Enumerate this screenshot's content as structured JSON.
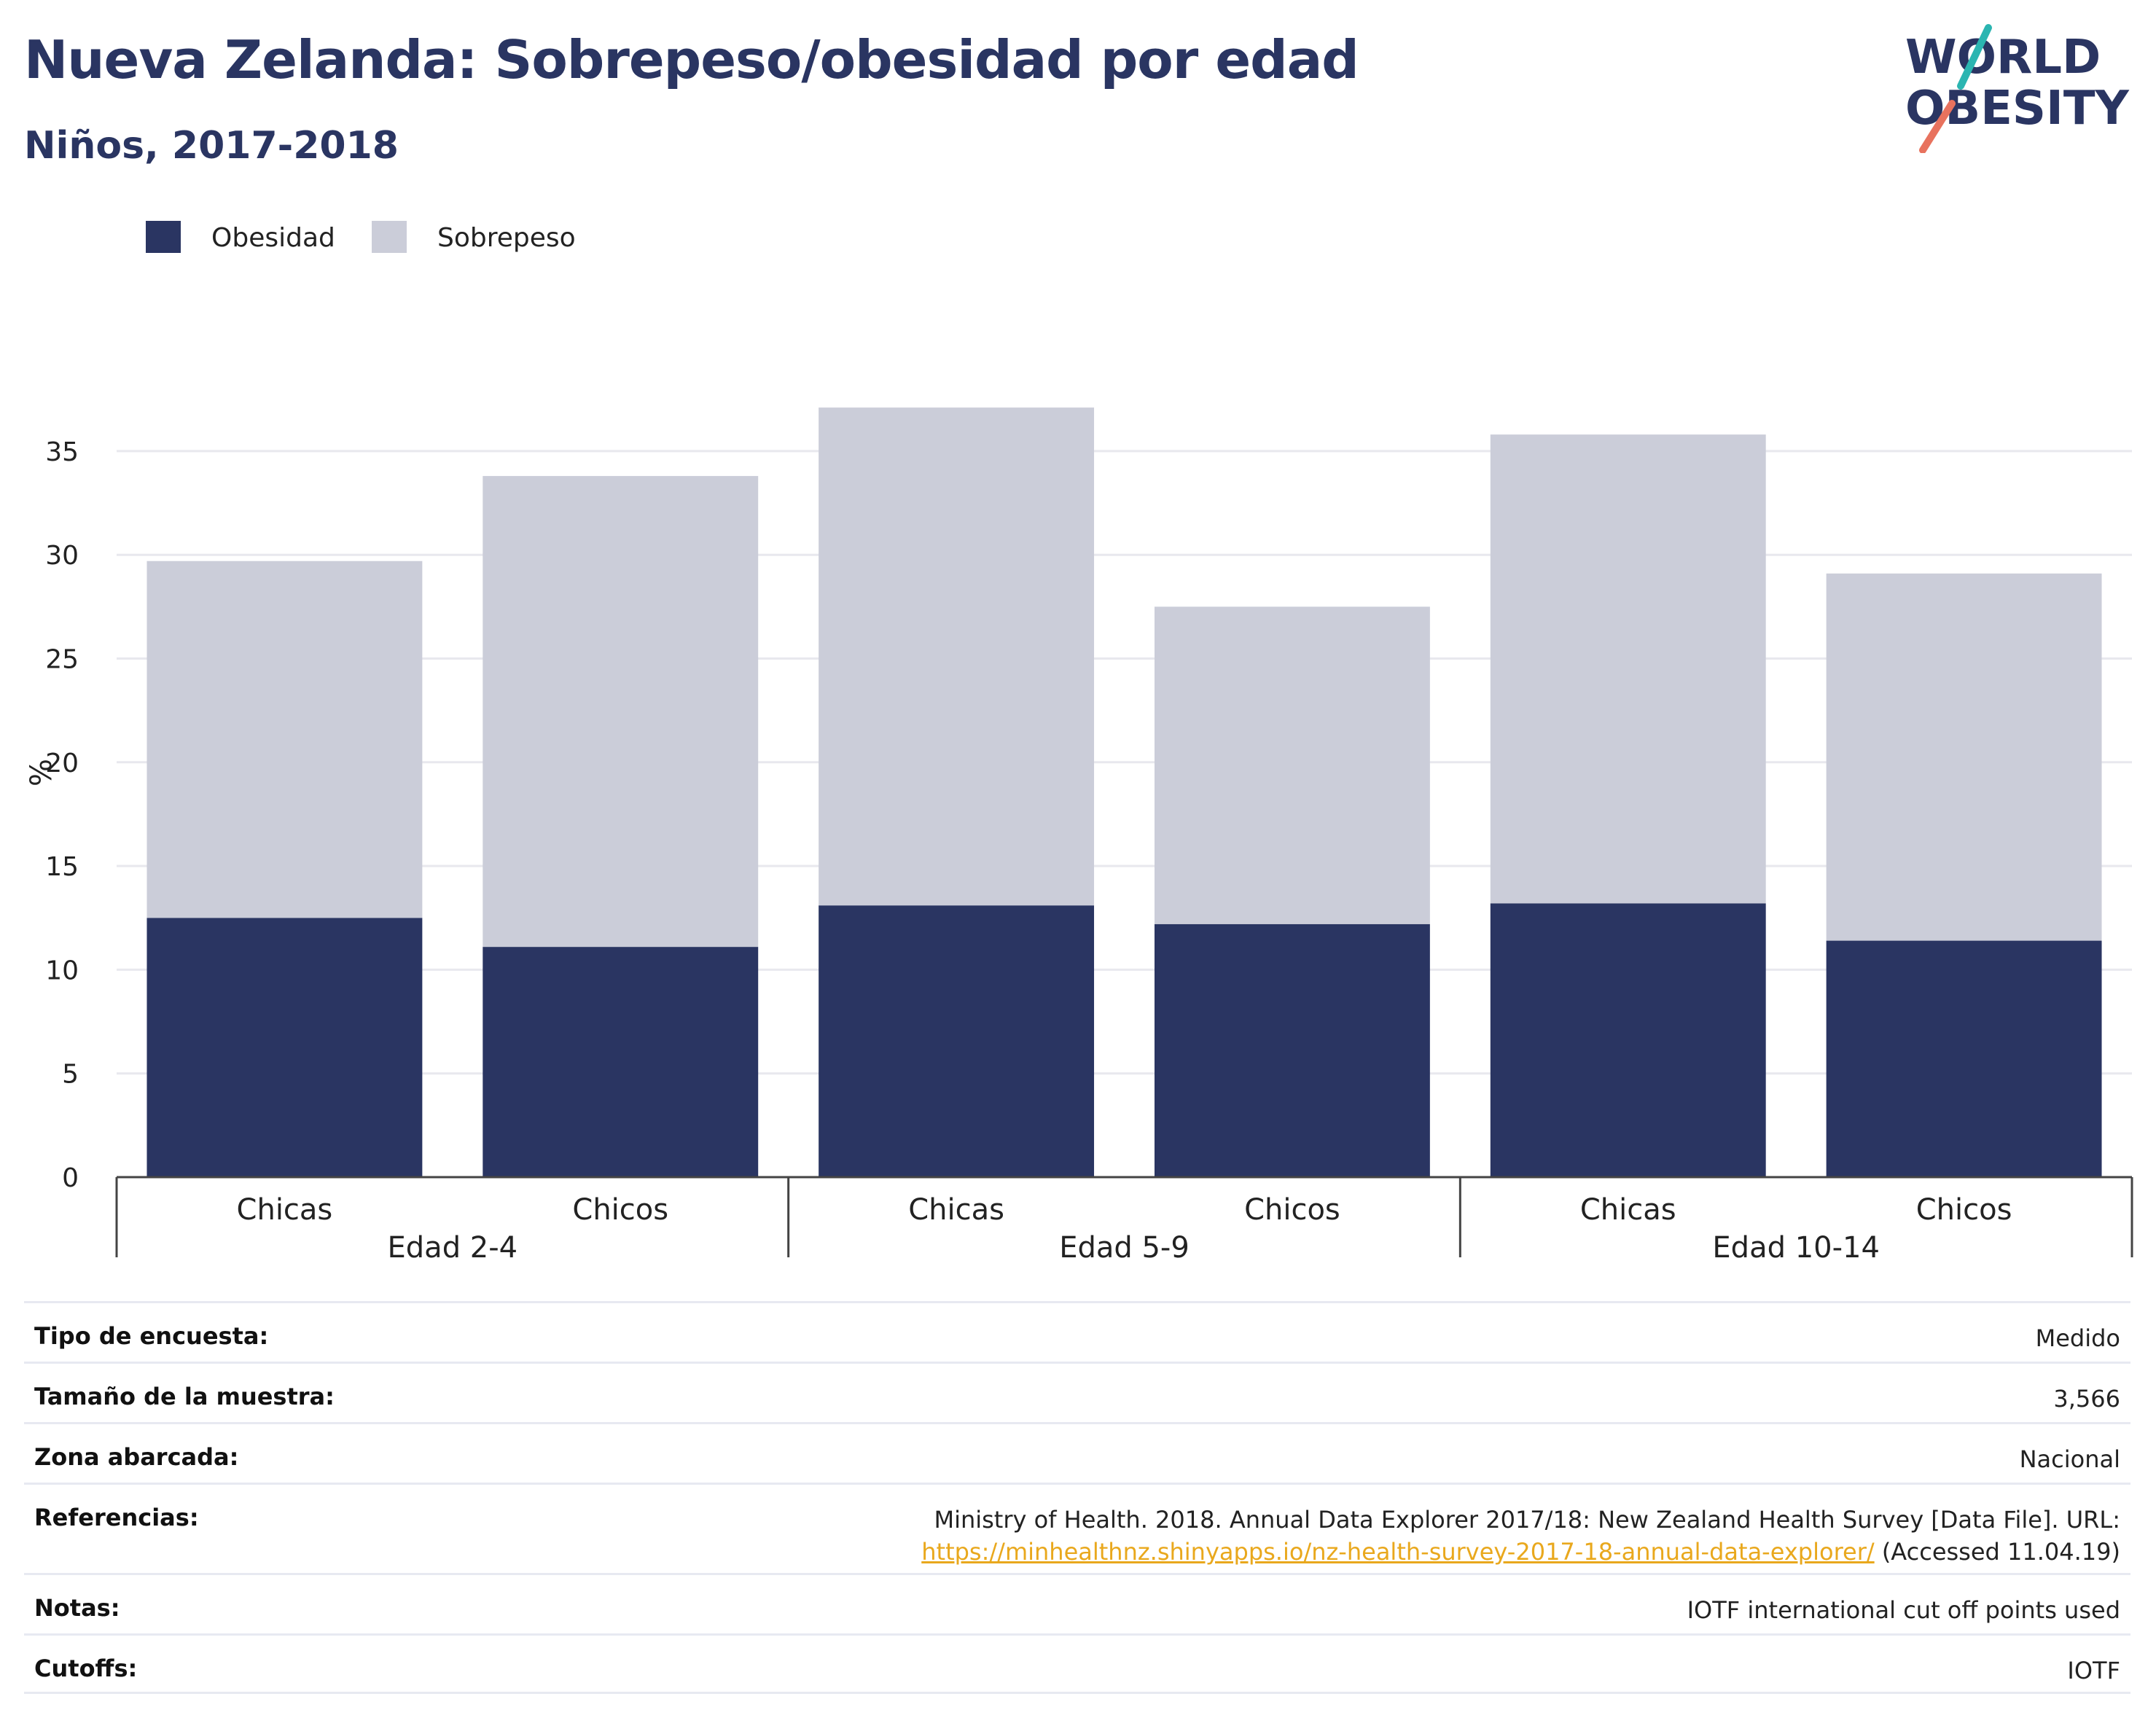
{
  "header": {
    "title": "Nueva Zelanda: Sobrepeso/obesidad por edad",
    "subtitle": "Niños, 2017-2018"
  },
  "logo": {
    "line1": "WORLD",
    "line2": "OBESITY",
    "accent_teal": "#2bb5b1",
    "accent_coral": "#e8725e"
  },
  "colors": {
    "obesidad": "#2a3562",
    "sobrepeso": "#cbcdd9",
    "text_dark": "#2a3562",
    "grid": "#e8e8ee"
  },
  "chart_data": {
    "type": "bar",
    "stacked": true,
    "ylabel": "%",
    "ylim": [
      0,
      37
    ],
    "yticks": [
      0,
      5,
      10,
      15,
      20,
      25,
      30,
      35
    ],
    "grid": true,
    "legend_position": "top-left",
    "groups": [
      "Edad 2-4",
      "Edad 5-9",
      "Edad 10-14"
    ],
    "categories": [
      "Chicas",
      "Chicos",
      "Chicas",
      "Chicos",
      "Chicas",
      "Chicos"
    ],
    "category_group": [
      0,
      0,
      1,
      1,
      2,
      2
    ],
    "series": [
      {
        "name": "Obesidad",
        "values": [
          12.5,
          11.1,
          13.1,
          12.2,
          13.2,
          11.4
        ]
      },
      {
        "name": "Sobrepeso",
        "values": [
          17.2,
          22.7,
          24.0,
          15.3,
          22.6,
          17.7
        ]
      }
    ]
  },
  "info": [
    {
      "label": "Tipo de encuesta:",
      "value": "Medido"
    },
    {
      "label": "Tamaño de la muestra:",
      "value": "3,566"
    },
    {
      "label": "Zona abarcada:",
      "value": "Nacional"
    },
    {
      "label": "Referencias:",
      "value": "Ministry of Health. 2018. Annual Data Explorer 2017/18: New Zealand Health Survey [Data File]. URL:",
      "link": "https://minhealthnz.shinyapps.io/nz-health-survey-2017-18-annual-data-explorer/",
      "suffix": " (Accessed 11.04.19)"
    },
    {
      "label": "Notas:",
      "value": "IOTF international cut off points used"
    },
    {
      "label": "Cutoffs:",
      "value": "IOTF"
    }
  ]
}
